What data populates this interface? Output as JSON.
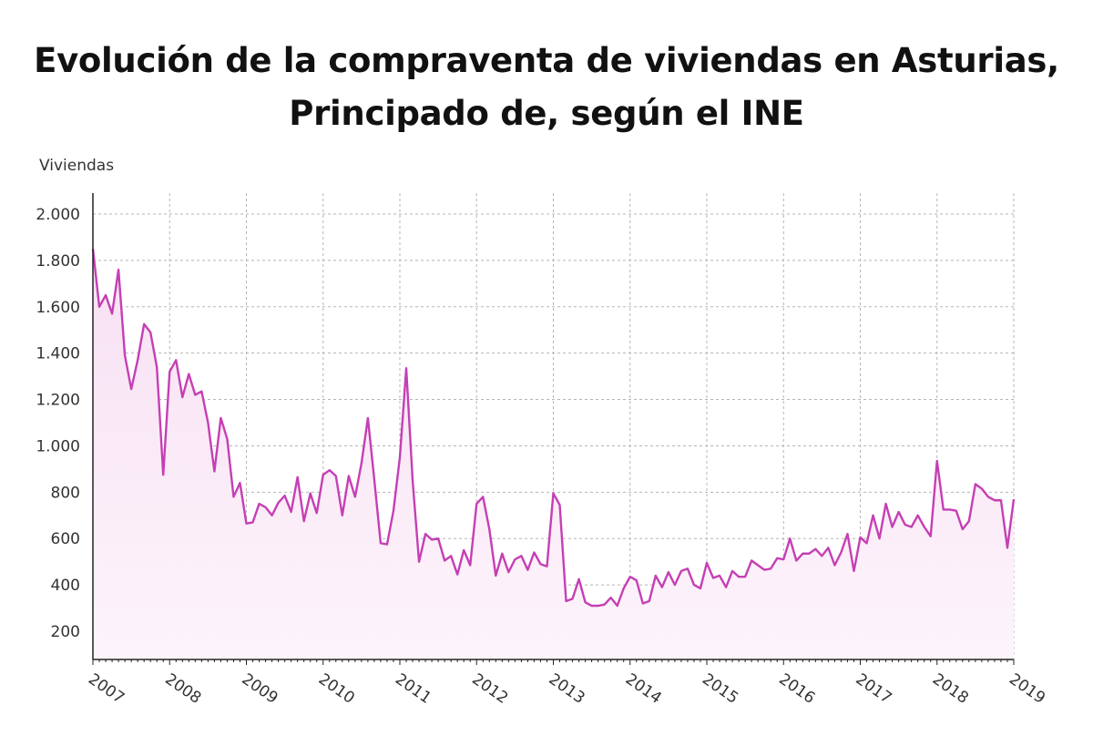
{
  "chart_data": {
    "type": "area",
    "title_line1": "Evolución de la compraventa de viviendas en Asturias,",
    "title_line2": "Principado de, según el INE",
    "ylabel": "Viviendas",
    "xlabel": "",
    "ylim": [
      80,
      2100
    ],
    "yticks": [
      200,
      400,
      600,
      800,
      1000,
      1200,
      1400,
      1600,
      1800,
      2000
    ],
    "ytick_labels": [
      "200",
      "400",
      "600",
      "800",
      "1.000",
      "1.200",
      "1.400",
      "1.600",
      "1.800",
      "2.000"
    ],
    "xticks": [
      "2007",
      "2008",
      "2009",
      "2010",
      "2011",
      "2012",
      "2013",
      "2014",
      "2015",
      "2016",
      "2017",
      "2018",
      "2019"
    ],
    "grid": true,
    "line_color": "#c53fb4",
    "fill_color": "#fbeef8",
    "series": [
      {
        "start": "2007-01",
        "frequency": "monthly",
        "values": [
          1850,
          1600,
          1650,
          1570,
          1760,
          1390,
          1245,
          1370,
          1525,
          1490,
          1340,
          875,
          1320,
          1370,
          1210,
          1310,
          1220,
          1235,
          1100,
          890,
          1120,
          1030,
          780,
          840,
          665,
          670,
          750,
          735,
          700,
          755,
          785,
          715,
          865,
          675,
          795,
          710,
          875,
          895,
          870,
          700,
          870,
          780,
          925,
          1120,
          855,
          580,
          575,
          720,
          950,
          1335,
          850,
          500,
          620,
          595,
          600,
          505,
          525,
          445,
          550,
          485,
          750,
          780,
          640,
          440,
          535,
          455,
          510,
          525,
          465,
          540,
          490,
          480,
          795,
          745,
          330,
          340,
          425,
          325,
          310,
          310,
          315,
          345,
          310,
          385,
          435,
          420,
          320,
          330,
          440,
          390,
          455,
          400,
          460,
          470,
          400,
          385,
          495,
          430,
          440,
          390,
          460,
          435,
          435,
          505,
          485,
          465,
          470,
          515,
          510,
          600,
          505,
          535,
          535,
          555,
          525,
          560,
          485,
          540,
          620,
          460,
          605,
          580,
          700,
          600,
          750,
          650,
          715,
          660,
          650,
          700,
          650,
          610,
          935,
          725,
          725,
          720,
          640,
          675,
          835,
          815,
          780,
          765,
          765,
          560,
          770
        ]
      }
    ]
  }
}
